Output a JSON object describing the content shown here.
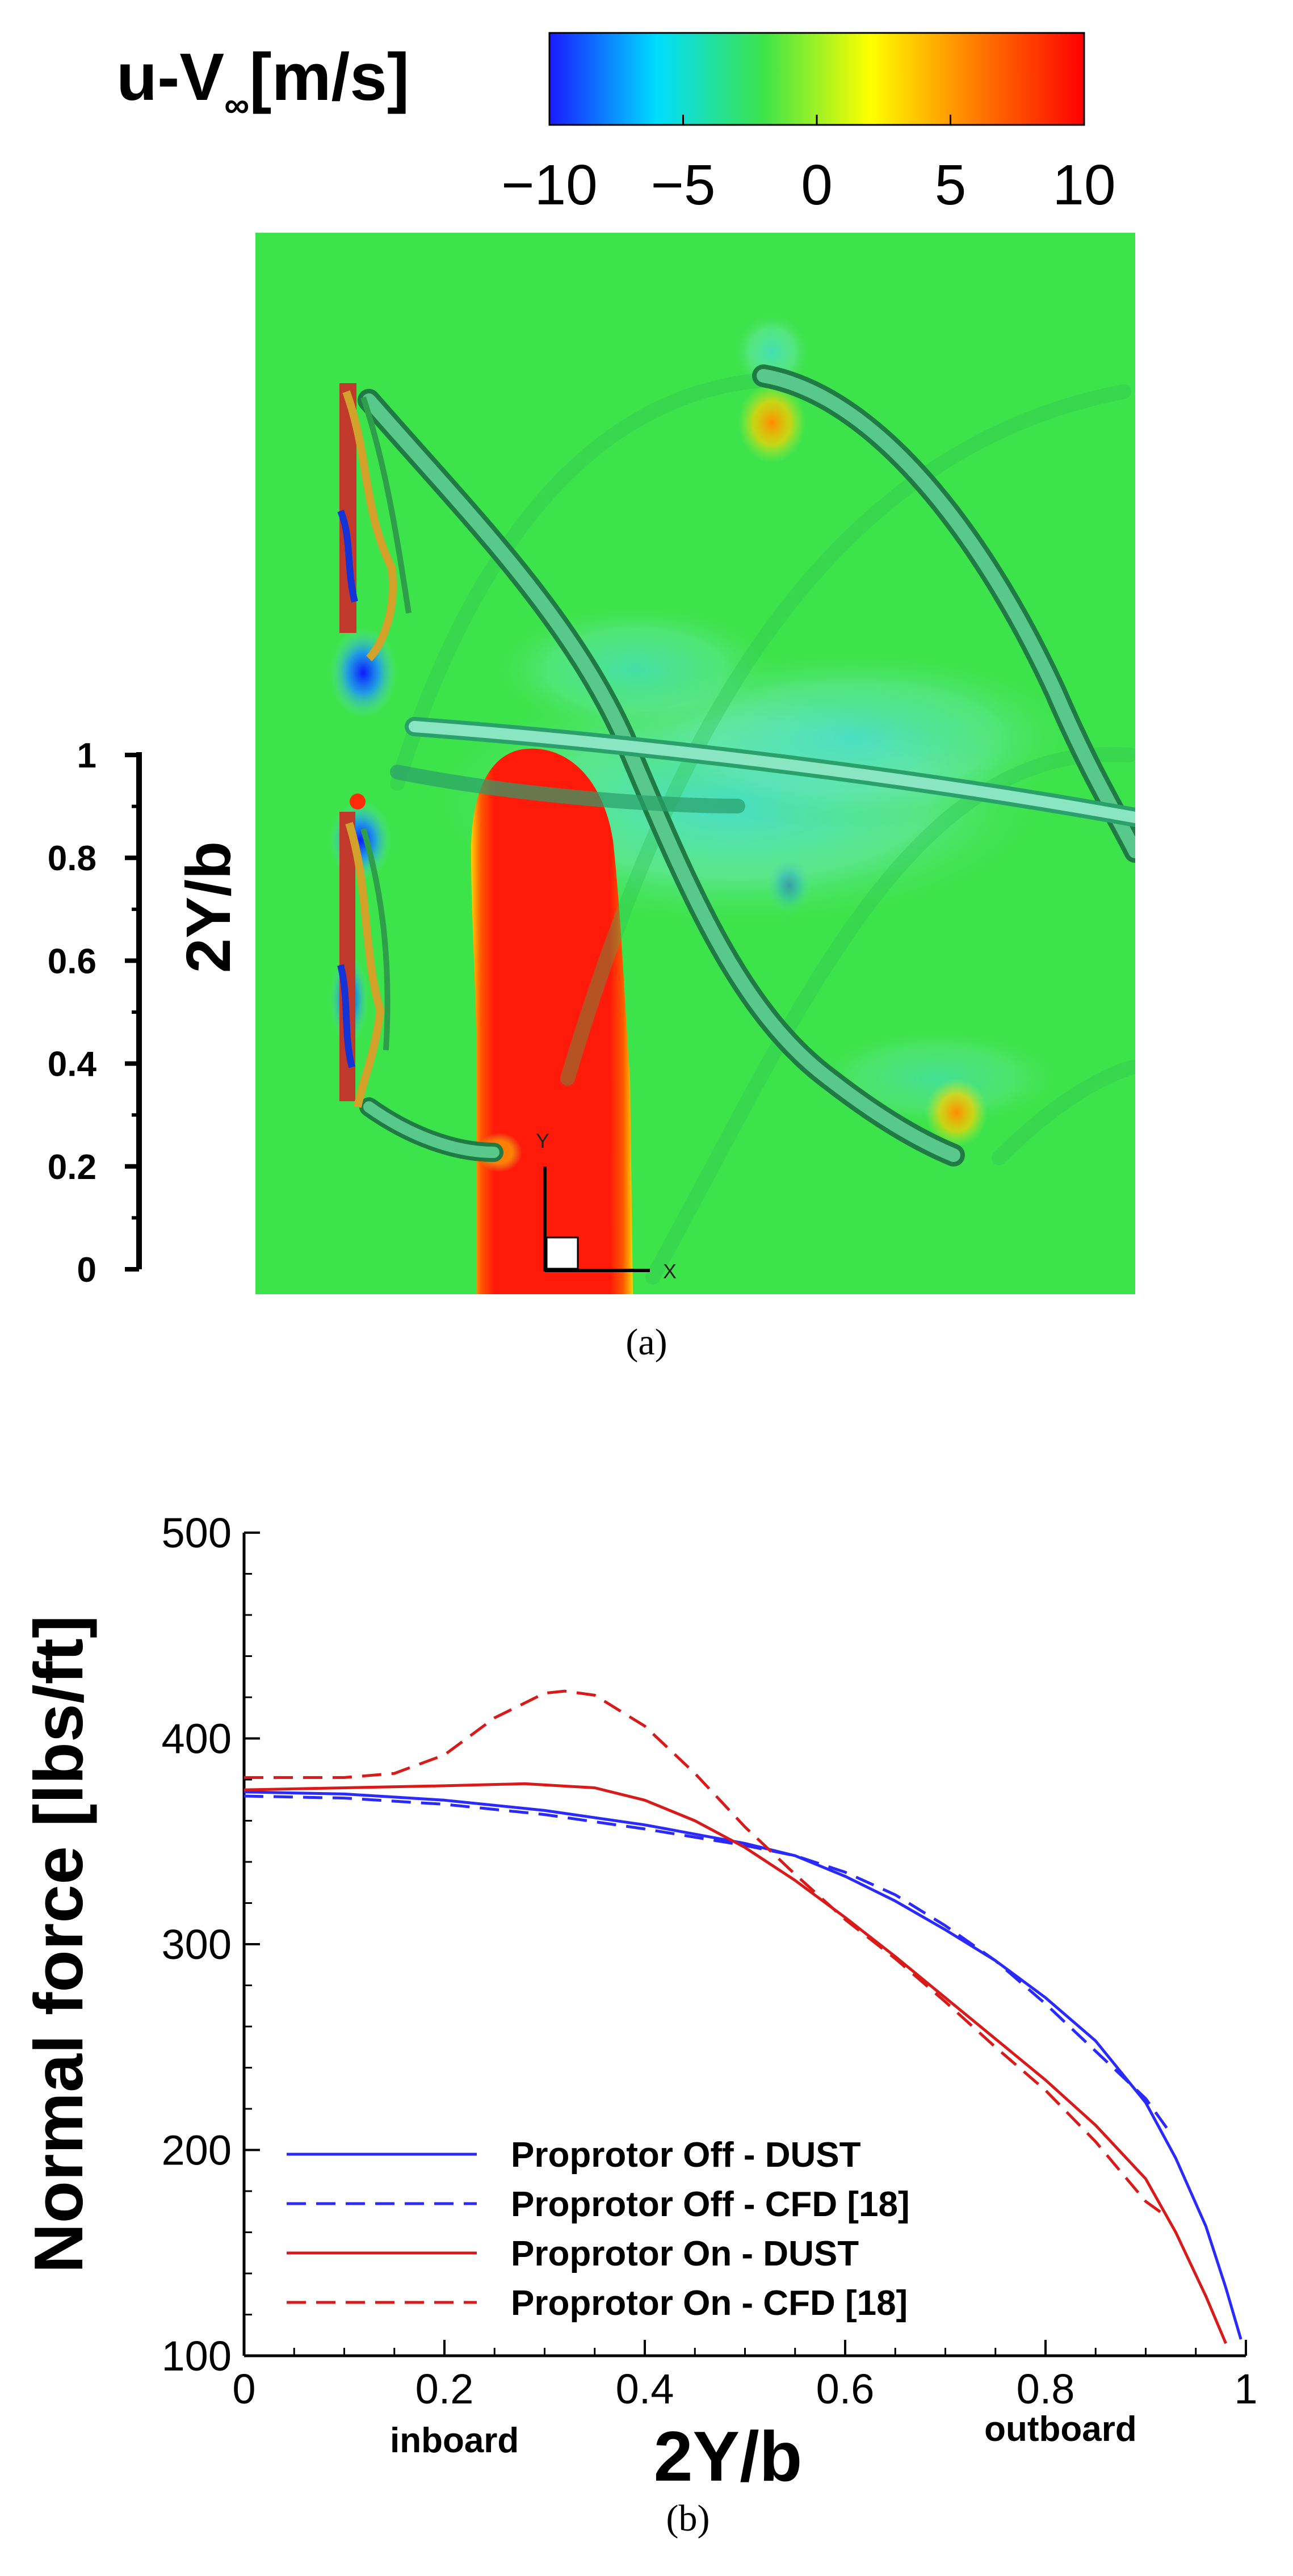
{
  "colors": {
    "field_green": "#3de34a",
    "field_red": "#ff1a0a",
    "field_cyan": "#5fe8c4",
    "field_blue": "#0a2cff",
    "series_blue": "#2a2aff",
    "series_red": "#d81a1a"
  },
  "panel_a": {
    "caption": "(a)",
    "colorbar": {
      "label_main": "u-V",
      "label_sub": "∞",
      "label_unit": "[m/s]",
      "ticks": [
        "−10",
        "−5",
        "0",
        "5",
        "10"
      ],
      "range": [
        -10,
        10
      ],
      "stops": [
        "#1a1aff",
        "#00dcff",
        "#3de34a",
        "#ffff00",
        "#ff7a00",
        "#ff0000"
      ]
    },
    "axis": {
      "label": "2Y/b",
      "ticks": [
        "0",
        "0.2",
        "0.4",
        "0.6",
        "0.8",
        "1"
      ],
      "values": [
        0,
        0.2,
        0.4,
        0.6,
        0.8,
        1.0
      ]
    },
    "triad": {
      "y_label": "Y",
      "x_label": "X"
    }
  },
  "chart_data": {
    "type": "line",
    "title": "",
    "xlabel": "2Y/b",
    "ylabel": "Normal force [lbs/ft]",
    "xlim": [
      0,
      1
    ],
    "ylim": [
      100,
      500
    ],
    "xticks": [
      0,
      0.2,
      0.4,
      0.6,
      0.8,
      1
    ],
    "xtick_labels": [
      "0",
      "0.2",
      "0.4",
      "0.6",
      "0.8",
      "1"
    ],
    "yticks": [
      100,
      200,
      300,
      400,
      500
    ],
    "ytick_labels": [
      "100",
      "200",
      "300",
      "400",
      "500"
    ],
    "annotations": [
      {
        "text": "inboard",
        "x": 0.21
      },
      {
        "text": "outboard",
        "x": 0.815
      }
    ],
    "legend_position": "bottom-left",
    "caption": "(b)",
    "series": [
      {
        "name": "Proprotor Off - DUST",
        "color": "#2a2aff",
        "dash": "solid",
        "x": [
          0,
          0.1,
          0.2,
          0.3,
          0.4,
          0.5,
          0.55,
          0.6,
          0.65,
          0.7,
          0.75,
          0.8,
          0.85,
          0.9,
          0.93,
          0.96,
          0.98,
          0.995
        ],
        "y": [
          374,
          373,
          370,
          365,
          358,
          349,
          343,
          333,
          321,
          307,
          292,
          274,
          253,
          223,
          196,
          163,
          133,
          108
        ]
      },
      {
        "name": "Proprotor Off - CFD [18]",
        "color": "#2a2aff",
        "dash": "dashed",
        "x": [
          0,
          0.1,
          0.2,
          0.3,
          0.4,
          0.5,
          0.55,
          0.6,
          0.65,
          0.7,
          0.75,
          0.8,
          0.85,
          0.9,
          0.925
        ],
        "y": [
          372,
          371,
          368,
          363,
          356,
          348,
          343,
          335,
          324,
          309,
          292,
          271,
          248,
          225,
          208
        ]
      },
      {
        "name": "Proprotor On - DUST",
        "color": "#d81a1a",
        "dash": "solid",
        "x": [
          0,
          0.1,
          0.2,
          0.28,
          0.35,
          0.4,
          0.45,
          0.5,
          0.55,
          0.6,
          0.65,
          0.7,
          0.75,
          0.8,
          0.85,
          0.9,
          0.93,
          0.96,
          0.98
        ],
        "y": [
          375,
          376,
          377,
          378,
          376,
          370,
          360,
          347,
          331,
          313,
          294,
          274,
          254,
          234,
          212,
          186,
          160,
          129,
          106
        ]
      },
      {
        "name": "Proprotor On - CFD [18]",
        "color": "#d81a1a",
        "dash": "dashed",
        "x": [
          0,
          0.1,
          0.15,
          0.2,
          0.25,
          0.3,
          0.32,
          0.35,
          0.4,
          0.45,
          0.5,
          0.55,
          0.6,
          0.65,
          0.7,
          0.75,
          0.8,
          0.85,
          0.9,
          0.92
        ],
        "y": [
          381,
          381,
          383,
          392,
          410,
          422,
          423,
          421,
          406,
          383,
          357,
          334,
          312,
          293,
          272,
          250,
          229,
          204,
          175,
          168
        ]
      }
    ]
  }
}
